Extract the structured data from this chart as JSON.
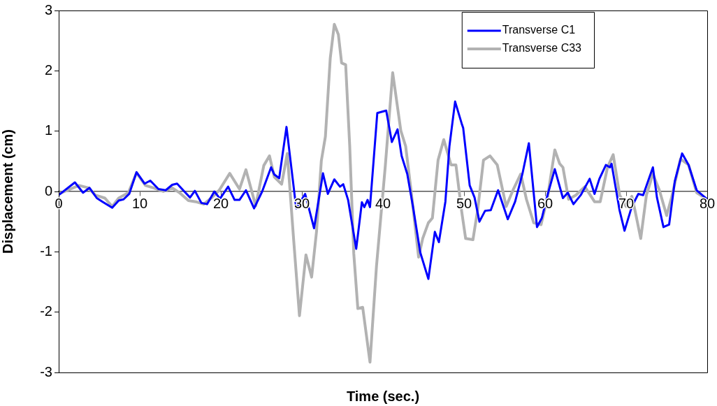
{
  "chart_data": {
    "type": "line",
    "xlabel": "Time (sec.)",
    "ylabel": "Displacement (cm)",
    "xlim": [
      0,
      80
    ],
    "xticks": [
      0,
      10,
      20,
      30,
      40,
      50,
      60,
      70,
      80
    ],
    "ylim": [
      -3,
      3
    ],
    "yticks": [
      -3,
      -2,
      -1,
      0,
      1,
      2,
      3
    ],
    "grid": false,
    "legend": "top right",
    "marker": "none",
    "line_style": "solid",
    "series": [
      {
        "name": "Transverse C1",
        "color": "#0000ff",
        "x": [
          0,
          2,
          3,
          3.8,
          4.7,
          5.4,
          6.6,
          7.4,
          8,
          8.7,
          9.6,
          10.6,
          11.3,
          12.3,
          13.2,
          14,
          14.6,
          15.5,
          16.2,
          16.8,
          17.6,
          18.3,
          19.2,
          19.9,
          20.9,
          21.7,
          22.3,
          23.1,
          24.1,
          25.1,
          26.2,
          26.6,
          27.2,
          28.1,
          29.3,
          30.4,
          31.5,
          32.6,
          33.2,
          34,
          34.7,
          35.1,
          35.7,
          36.7,
          37.4,
          37.7,
          38.1,
          38.4,
          39.3,
          40.4,
          41.1,
          41.8,
          42.3,
          43,
          43.7,
          44.6,
          45.6,
          46.4,
          46.9,
          47.7,
          48.2,
          48.9,
          49.7,
          49.9,
          50.7,
          51.3,
          51.9,
          52.6,
          53.3,
          54.2,
          55.4,
          56.3,
          57.2,
          58,
          59,
          59.6,
          60.3,
          61.2,
          62.2,
          62.8,
          63.5,
          64.4,
          65.5,
          66.1,
          66.7,
          67.5,
          68,
          68.2,
          69.2,
          69.8,
          70.7,
          71.5,
          72.1,
          73.3,
          73.8,
          74.6,
          75.3,
          76,
          76.9,
          77.7,
          78.7,
          80
        ],
        "values": [
          -0.06,
          0.15,
          -0.02,
          0.06,
          -0.11,
          -0.17,
          -0.27,
          -0.15,
          -0.13,
          -0.04,
          0.32,
          0.13,
          0.18,
          0.04,
          0.02,
          0.11,
          0.13,
          0,
          -0.1,
          0.01,
          -0.19,
          -0.21,
          0,
          -0.12,
          0.08,
          -0.14,
          -0.14,
          0.02,
          -0.28,
          0,
          0.4,
          0.28,
          0.22,
          1.07,
          -0.28,
          -0.04,
          -0.61,
          0.3,
          -0.04,
          0.2,
          0.08,
          0.12,
          -0.14,
          -0.95,
          -0.18,
          -0.26,
          -0.14,
          -0.26,
          1.3,
          1.34,
          0.82,
          1.03,
          0.59,
          0.29,
          -0.25,
          -1.01,
          -1.45,
          -0.67,
          -0.84,
          -0.17,
          0.75,
          1.49,
          1.13,
          1.05,
          0.1,
          -0.1,
          -0.5,
          -0.32,
          -0.31,
          0.02,
          -0.46,
          -0.17,
          0.29,
          0.8,
          -0.59,
          -0.44,
          -0.06,
          0.37,
          -0.11,
          -0.02,
          -0.21,
          -0.06,
          0.21,
          -0.04,
          0.21,
          0.44,
          0.4,
          0.46,
          -0.32,
          -0.65,
          -0.25,
          -0.04,
          -0.06,
          0.4,
          -0.1,
          -0.59,
          -0.55,
          0.17,
          0.63,
          0.44,
          0.02,
          -0.13
        ]
      },
      {
        "name": "Transverse C33",
        "color": "#b2b2b2",
        "x": [
          0,
          2.5,
          3.7,
          4.5,
          5.7,
          6.6,
          7.4,
          8.6,
          9.6,
          10.7,
          11.7,
          12.9,
          14,
          14.9,
          16,
          16.9,
          17.9,
          18.9,
          19.8,
          21.1,
          22.3,
          23.1,
          24.3,
          25.3,
          26,
          26.6,
          27.5,
          28.2,
          29,
          29.7,
          30.5,
          31.2,
          31.8,
          32.4,
          32.9,
          33.5,
          34,
          34.5,
          34.9,
          35.4,
          35.9,
          36.4,
          36.9,
          37.5,
          38.4,
          39.2,
          40.3,
          41.2,
          42.2,
          42.8,
          43.5,
          44.4,
          44.9,
          45.6,
          46.1,
          46.8,
          47.5,
          48.4,
          49,
          49.7,
          50.2,
          51.1,
          51.7,
          52.4,
          53.2,
          54.1,
          55.2,
          56.1,
          57,
          57.7,
          58.6,
          59.5,
          60.3,
          61.2,
          61.8,
          62.2,
          62.9,
          63.8,
          64.9,
          66.1,
          66.8,
          67.7,
          68.4,
          69.2,
          70,
          70.7,
          71.1,
          71.8,
          72.5,
          73.3,
          74.1,
          75,
          75.6,
          76.7,
          77.7,
          78.7,
          80
        ],
        "values": [
          -0.04,
          0.1,
          0.06,
          -0.06,
          -0.11,
          -0.25,
          -0.11,
          -0.02,
          0.31,
          0.1,
          0.06,
          0,
          0.06,
          -0.02,
          -0.15,
          -0.17,
          -0.21,
          -0.1,
          0.02,
          0.3,
          0.04,
          0.36,
          -0.24,
          0.43,
          0.59,
          0.24,
          0.12,
          0.63,
          -0.83,
          -2.06,
          -1.05,
          -1.42,
          -0.67,
          0.51,
          0.91,
          2.21,
          2.77,
          2.6,
          2.13,
          2.1,
          0.75,
          -1.03,
          -1.94,
          -1.92,
          -2.83,
          -1.24,
          0.44,
          1.97,
          1.01,
          0.75,
          -0.02,
          -1.09,
          -0.78,
          -0.52,
          -0.44,
          0.52,
          0.86,
          0.44,
          0.44,
          -0.32,
          -0.78,
          -0.8,
          -0.29,
          0.52,
          0.59,
          0.44,
          -0.25,
          0.04,
          0.29,
          -0.13,
          -0.52,
          -0.55,
          -0.1,
          0.69,
          0.46,
          0.4,
          -0.13,
          -0.06,
          0.08,
          -0.17,
          -0.17,
          0.4,
          0.61,
          -0.06,
          -0.25,
          -0.08,
          -0.32,
          -0.78,
          -0.06,
          0.29,
          0.02,
          -0.4,
          -0.1,
          0.54,
          0.44,
          -0.02,
          -0.13
        ]
      }
    ]
  }
}
